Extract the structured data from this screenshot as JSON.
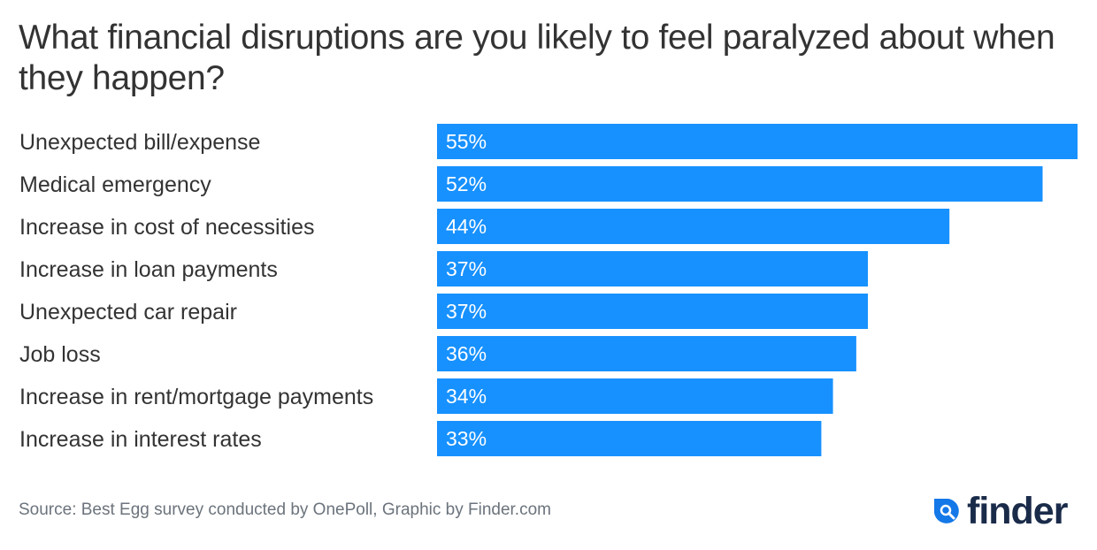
{
  "chart_data": {
    "type": "bar",
    "orientation": "horizontal",
    "title": "What financial disruptions are you likely to feel paralyzed about when they happen?",
    "categories": [
      "Unexpected bill/expense",
      "Medical emergency",
      "Increase in cost of necessities",
      "Increase in loan payments",
      "Unexpected car repair",
      "Job loss",
      "Increase in rent/mortgage payments",
      "Increase in interest rates"
    ],
    "values": [
      55,
      52,
      44,
      37,
      37,
      36,
      34,
      33
    ],
    "value_labels": [
      "55%",
      "52%",
      "44%",
      "37%",
      "37%",
      "36%",
      "34%",
      "33%"
    ],
    "unit": "%",
    "xlabel": "",
    "ylabel": "",
    "xlim": [
      0,
      55
    ],
    "grid": false,
    "legend": "none",
    "bar_color": "#1791ff"
  },
  "footer": {
    "source": "Source: Best Egg survey conducted by OnePoll, Graphic by Finder.com",
    "logo_text": "finder",
    "logo_icon": "magnifier-drop-icon",
    "logo_colors": {
      "icon": "#1478e8",
      "text": "#1a2b4a"
    }
  }
}
